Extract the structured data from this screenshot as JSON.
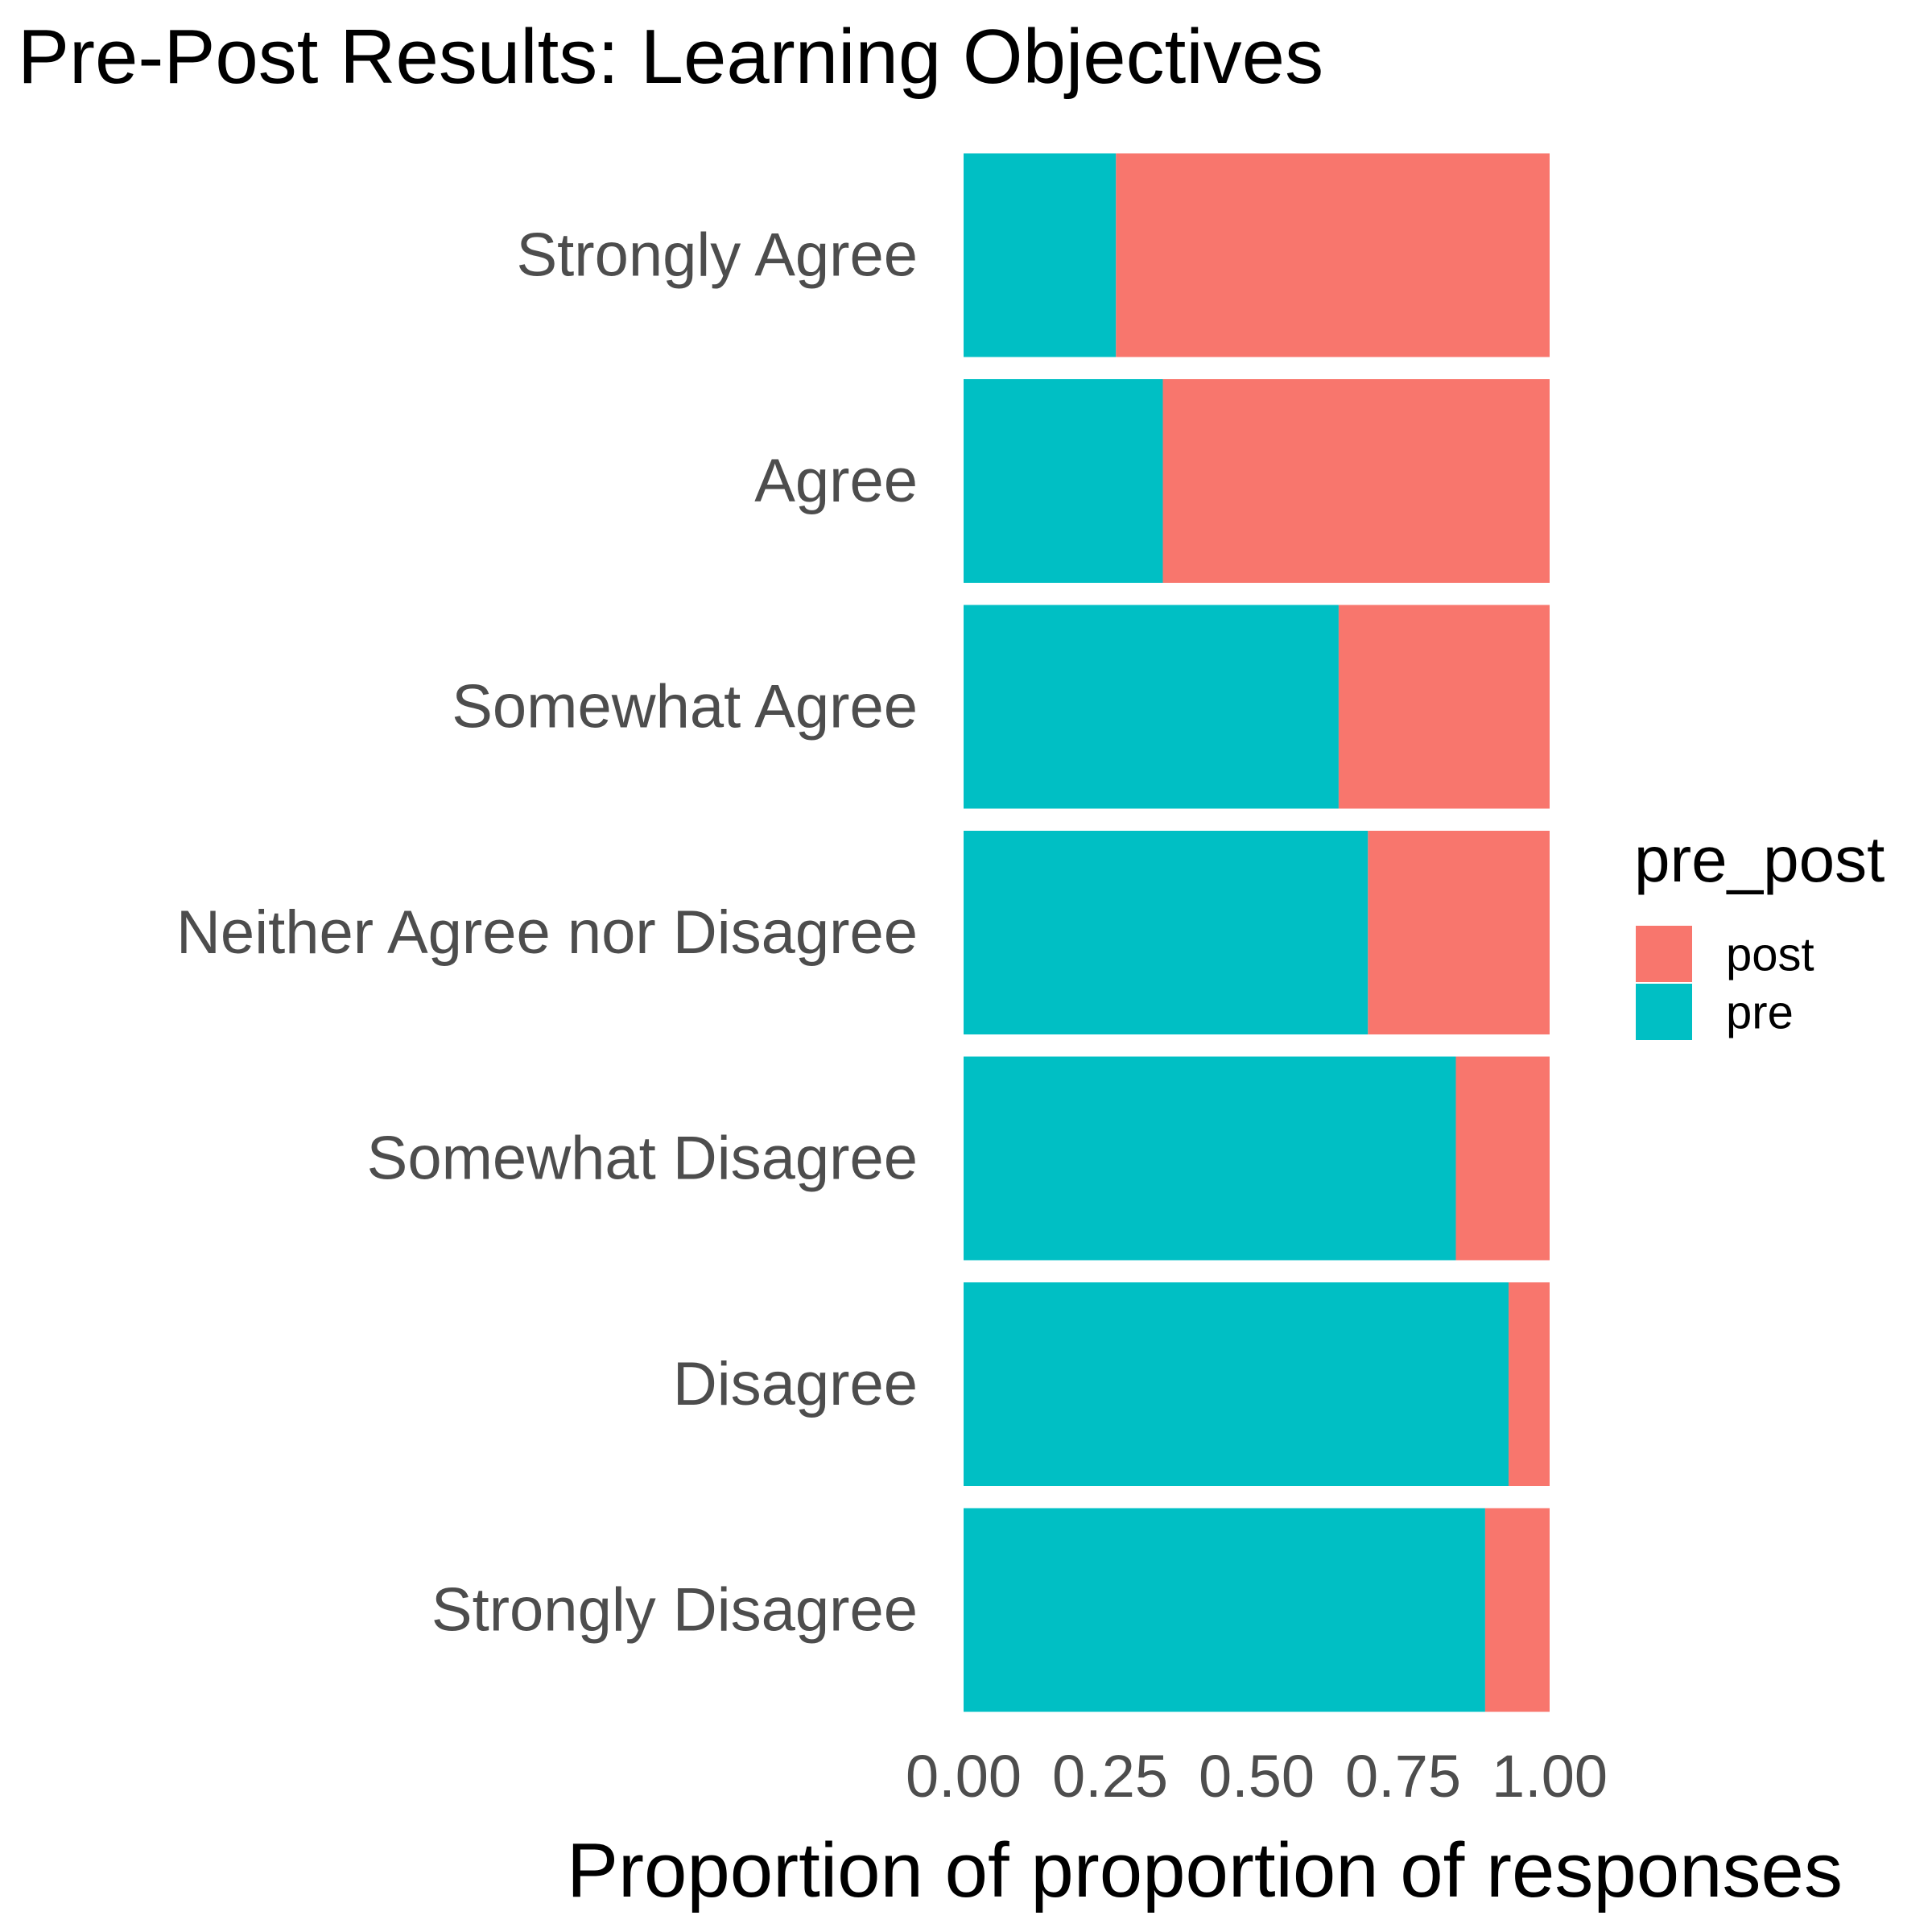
{
  "chart_data": {
    "type": "bar",
    "orientation": "horizontal",
    "stacked": true,
    "title": "Pre-Post Results: Learning Objectives",
    "xlabel": "Proportion of proportion of responses",
    "ylabel": "",
    "xlim": [
      0,
      1
    ],
    "x_ticks": [
      "0.00",
      "0.25",
      "0.50",
      "0.75",
      "1.00"
    ],
    "x_tick_values": [
      0,
      0.25,
      0.5,
      0.75,
      1
    ],
    "grid": false,
    "categories": [
      "Strongly Agree",
      "Agree",
      "Somewhat Agree",
      "Neither Agree nor Disagree",
      "Somewhat Disagree",
      "Disagree",
      "Strongly Disagree"
    ],
    "series": [
      {
        "name": "pre",
        "color": "#00BFC4",
        "values": [
          0.26,
          0.34,
          0.64,
          0.69,
          0.84,
          0.93,
          0.89
        ]
      },
      {
        "name": "post",
        "color": "#F8766D",
        "values": [
          0.74,
          0.66,
          0.36,
          0.31,
          0.16,
          0.07,
          0.11
        ]
      }
    ],
    "legend": {
      "title": "pre_post",
      "placement": "right",
      "entries": [
        {
          "label": "post",
          "color": "#F8766D"
        },
        {
          "label": "pre",
          "color": "#00BFC4"
        }
      ]
    }
  }
}
